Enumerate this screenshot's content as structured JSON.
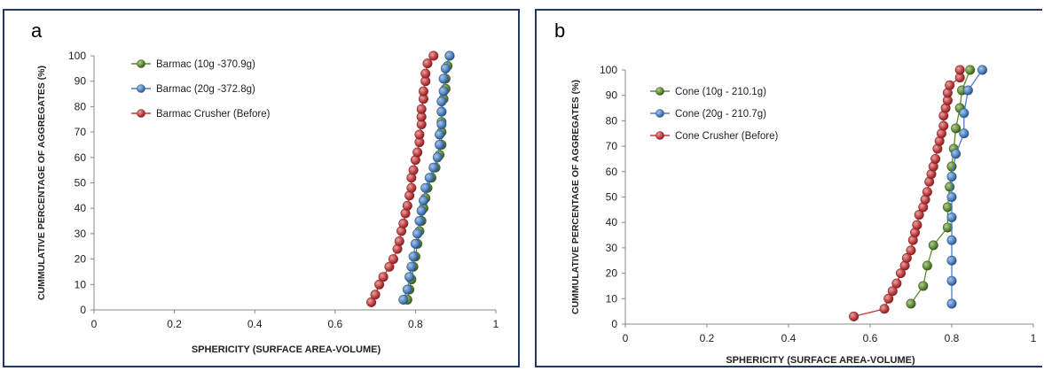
{
  "chart_data": [
    {
      "type": "scatter",
      "panel_label": "a",
      "xlabel": "SPHERICITY (SURFACE AREA-VOLUME)",
      "ylabel": "CUMMULATIVE PERCENTAGE OF AGGREGATES (%)",
      "xlim": [
        0,
        1
      ],
      "ylim": [
        0,
        100
      ],
      "x_ticks": [
        "0",
        "0.2",
        "0.4",
        "0.6",
        "0.8",
        "1"
      ],
      "y_ticks": [
        "0",
        "10",
        "20",
        "30",
        "40",
        "50",
        "60",
        "70",
        "80",
        "90",
        "100"
      ],
      "legend_position": "top-left",
      "series": [
        {
          "name": "Barmac (10g -370.9g)",
          "color": "#5b8a2e",
          "points": [
            [
              0.78,
              4
            ],
            [
              0.785,
              8
            ],
            [
              0.79,
              12
            ],
            [
              0.795,
              17
            ],
            [
              0.8,
              21
            ],
            [
              0.805,
              26
            ],
            [
              0.81,
              31
            ],
            [
              0.815,
              35
            ],
            [
              0.82,
              40
            ],
            [
              0.825,
              44
            ],
            [
              0.83,
              48
            ],
            [
              0.84,
              52
            ],
            [
              0.85,
              56
            ],
            [
              0.86,
              61
            ],
            [
              0.865,
              65
            ],
            [
              0.865,
              70
            ],
            [
              0.865,
              74
            ],
            [
              0.865,
              78
            ],
            [
              0.87,
              83
            ],
            [
              0.875,
              87
            ],
            [
              0.875,
              91
            ],
            [
              0.88,
              96
            ],
            [
              0.885,
              100
            ]
          ]
        },
        {
          "name": "Barmac (20g -372.8g)",
          "color": "#4a7fc1",
          "points": [
            [
              0.77,
              4
            ],
            [
              0.78,
              8
            ],
            [
              0.785,
              13
            ],
            [
              0.79,
              17
            ],
            [
              0.795,
              21
            ],
            [
              0.8,
              26
            ],
            [
              0.805,
              30
            ],
            [
              0.81,
              35
            ],
            [
              0.815,
              39
            ],
            [
              0.82,
              43
            ],
            [
              0.825,
              48
            ],
            [
              0.835,
              52
            ],
            [
              0.845,
              56
            ],
            [
              0.855,
              60
            ],
            [
              0.86,
              65
            ],
            [
              0.86,
              69
            ],
            [
              0.865,
              73
            ],
            [
              0.865,
              78
            ],
            [
              0.865,
              82
            ],
            [
              0.87,
              86
            ],
            [
              0.87,
              91
            ],
            [
              0.875,
              95
            ],
            [
              0.885,
              100
            ]
          ]
        },
        {
          "name": "Barmac Crusher (Before)",
          "color": "#c0393b",
          "points": [
            [
              0.69,
              3
            ],
            [
              0.7,
              6
            ],
            [
              0.71,
              10
            ],
            [
              0.72,
              13
            ],
            [
              0.735,
              17
            ],
            [
              0.745,
              20
            ],
            [
              0.755,
              24
            ],
            [
              0.76,
              27
            ],
            [
              0.765,
              31
            ],
            [
              0.77,
              34
            ],
            [
              0.775,
              38
            ],
            [
              0.78,
              41
            ],
            [
              0.785,
              45
            ],
            [
              0.79,
              48
            ],
            [
              0.79,
              52
            ],
            [
              0.795,
              55
            ],
            [
              0.8,
              59
            ],
            [
              0.805,
              62
            ],
            [
              0.81,
              66
            ],
            [
              0.81,
              69
            ],
            [
              0.815,
              73
            ],
            [
              0.815,
              76
            ],
            [
              0.815,
              79
            ],
            [
              0.82,
              83
            ],
            [
              0.82,
              86
            ],
            [
              0.825,
              90
            ],
            [
              0.825,
              93
            ],
            [
              0.83,
              97
            ],
            [
              0.845,
              100
            ]
          ]
        }
      ]
    },
    {
      "type": "scatter",
      "panel_label": "b",
      "xlabel": "SPHERICITY (SURFACE AREA-VOLUME)",
      "ylabel": "CUMMULATIVE PERCENTAGE OF AGGREGATES (%)",
      "xlim": [
        0,
        1
      ],
      "ylim": [
        0,
        100
      ],
      "x_ticks": [
        "0",
        "0.2",
        "0.4",
        "0.6",
        "0.8",
        "1"
      ],
      "y_ticks": [
        "0",
        "10",
        "20",
        "30",
        "40",
        "50",
        "60",
        "70",
        "80",
        "90",
        "100"
      ],
      "legend_position": "top-left",
      "series": [
        {
          "name": "Cone (10g - 210.1g)",
          "color": "#5b8a2e",
          "points": [
            [
              0.7,
              8
            ],
            [
              0.73,
              15
            ],
            [
              0.74,
              23
            ],
            [
              0.755,
              31
            ],
            [
              0.79,
              38
            ],
            [
              0.79,
              46
            ],
            [
              0.795,
              54
            ],
            [
              0.8,
              62
            ],
            [
              0.805,
              69
            ],
            [
              0.81,
              77
            ],
            [
              0.82,
              85
            ],
            [
              0.825,
              92
            ],
            [
              0.845,
              100
            ]
          ]
        },
        {
          "name": "Cone (20g - 210.7g)",
          "color": "#4a7fc1",
          "points": [
            [
              0.8,
              8
            ],
            [
              0.8,
              17
            ],
            [
              0.8,
              25
            ],
            [
              0.8,
              33
            ],
            [
              0.8,
              42
            ],
            [
              0.8,
              50
            ],
            [
              0.8,
              58
            ],
            [
              0.81,
              67
            ],
            [
              0.83,
              75
            ],
            [
              0.83,
              83
            ],
            [
              0.84,
              92
            ],
            [
              0.875,
              100
            ]
          ]
        },
        {
          "name": "Cone Crusher (Before)",
          "color": "#c0393b",
          "points": [
            [
              0.56,
              3
            ],
            [
              0.635,
              6
            ],
            [
              0.645,
              10
            ],
            [
              0.655,
              13
            ],
            [
              0.665,
              16
            ],
            [
              0.675,
              20
            ],
            [
              0.685,
              23
            ],
            [
              0.69,
              26
            ],
            [
              0.7,
              29
            ],
            [
              0.705,
              33
            ],
            [
              0.71,
              36
            ],
            [
              0.715,
              39
            ],
            [
              0.72,
              43
            ],
            [
              0.73,
              46
            ],
            [
              0.735,
              49
            ],
            [
              0.74,
              52
            ],
            [
              0.745,
              56
            ],
            [
              0.75,
              59
            ],
            [
              0.755,
              62
            ],
            [
              0.76,
              65
            ],
            [
              0.765,
              69
            ],
            [
              0.77,
              72
            ],
            [
              0.775,
              75
            ],
            [
              0.78,
              78
            ],
            [
              0.78,
              82
            ],
            [
              0.785,
              85
            ],
            [
              0.79,
              88
            ],
            [
              0.79,
              91
            ],
            [
              0.795,
              94
            ],
            [
              0.82,
              97
            ],
            [
              0.82,
              100
            ]
          ]
        }
      ]
    }
  ]
}
